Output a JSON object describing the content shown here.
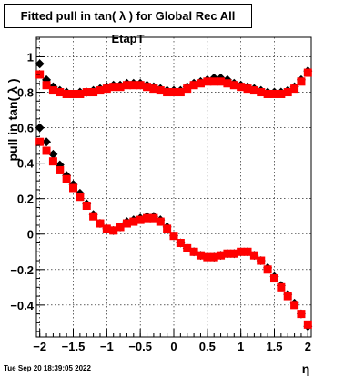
{
  "chart_data": {
    "type": "scatter",
    "title": "Fitted pull in tan( λ ) for Global Rec All EtapT",
    "xlabel": "η",
    "ylabel": "pull in tan( λ )",
    "xlim": [
      -2.05,
      2.05
    ],
    "ylim": [
      -0.58,
      1.11
    ],
    "grid": true,
    "x_ticks": [
      -2,
      -1.5,
      -1,
      -0.5,
      0,
      0.5,
      1,
      1.5,
      2
    ],
    "x_tick_labels": [
      "−2",
      "−1.5",
      "−1",
      "−0.5",
      "0",
      "0.5",
      "1",
      "1.5",
      "2"
    ],
    "y_ticks": [
      -0.4,
      -0.2,
      0,
      0.2,
      0.4,
      0.6,
      0.8,
      1
    ],
    "y_tick_labels": [
      "−0.4",
      "−0.2",
      "0",
      "0.2",
      "0.4",
      "0.6",
      "0.8",
      "1"
    ],
    "series": [
      {
        "color": "#000000",
        "marker": "diamond",
        "x": [
          -2.0,
          -1.9,
          -1.8,
          -1.7,
          -1.6,
          -1.5,
          -1.4,
          -1.3,
          -1.2,
          -1.1,
          -1.0,
          -0.9,
          -0.8,
          -0.7,
          -0.6,
          -0.5,
          -0.4,
          -0.3,
          -0.2,
          -0.1,
          0.0,
          0.1,
          0.2,
          0.3,
          0.4,
          0.5,
          0.6,
          0.7,
          0.8,
          0.9,
          1.0,
          1.1,
          1.2,
          1.3,
          1.4,
          1.5,
          1.6,
          1.7,
          1.8,
          1.9,
          2.0
        ],
        "y": [
          0.96,
          0.87,
          0.83,
          0.81,
          0.8,
          0.79,
          0.8,
          0.8,
          0.81,
          0.82,
          0.83,
          0.84,
          0.84,
          0.85,
          0.85,
          0.85,
          0.84,
          0.83,
          0.82,
          0.81,
          0.81,
          0.81,
          0.83,
          0.85,
          0.86,
          0.87,
          0.88,
          0.88,
          0.87,
          0.85,
          0.84,
          0.83,
          0.82,
          0.81,
          0.8,
          0.8,
          0.8,
          0.81,
          0.83,
          0.87,
          0.92
        ]
      },
      {
        "color": "#ff0000",
        "marker": "square",
        "x": [
          -2.0,
          -1.9,
          -1.8,
          -1.7,
          -1.6,
          -1.5,
          -1.4,
          -1.3,
          -1.2,
          -1.1,
          -1.0,
          -0.9,
          -0.8,
          -0.7,
          -0.6,
          -0.5,
          -0.4,
          -0.3,
          -0.2,
          -0.1,
          0.0,
          0.1,
          0.2,
          0.3,
          0.4,
          0.5,
          0.6,
          0.7,
          0.8,
          0.9,
          1.0,
          1.1,
          1.2,
          1.3,
          1.4,
          1.5,
          1.6,
          1.7,
          1.8,
          1.9,
          2.0
        ],
        "y": [
          0.9,
          0.84,
          0.81,
          0.8,
          0.79,
          0.79,
          0.79,
          0.8,
          0.8,
          0.81,
          0.82,
          0.83,
          0.83,
          0.84,
          0.84,
          0.84,
          0.83,
          0.82,
          0.81,
          0.8,
          0.8,
          0.8,
          0.82,
          0.84,
          0.85,
          0.86,
          0.86,
          0.86,
          0.85,
          0.84,
          0.83,
          0.82,
          0.81,
          0.8,
          0.79,
          0.79,
          0.79,
          0.8,
          0.82,
          0.86,
          0.91
        ]
      },
      {
        "color": "#000000",
        "marker": "diamond",
        "x": [
          -2.0,
          -1.9,
          -1.8,
          -1.7,
          -1.6,
          -1.5,
          -1.4,
          -1.3,
          -1.2,
          -1.1,
          -1.0,
          -0.9,
          -0.8,
          -0.7,
          -0.6,
          -0.5,
          -0.4,
          -0.3,
          -0.2,
          -0.1,
          0.0,
          0.1,
          0.2,
          0.3,
          0.4,
          0.5,
          0.6,
          0.7,
          0.8,
          0.9,
          1.0,
          1.1,
          1.2,
          1.3,
          1.4,
          1.5,
          1.6,
          1.7,
          1.8,
          1.9,
          2.0
        ],
        "y": [
          0.6,
          0.52,
          0.45,
          0.39,
          0.33,
          0.28,
          0.23,
          0.17,
          0.11,
          0.06,
          0.03,
          0.02,
          0.04,
          0.07,
          0.08,
          0.09,
          0.1,
          0.1,
          0.08,
          0.04,
          -0.01,
          -0.05,
          -0.08,
          -0.1,
          -0.12,
          -0.13,
          -0.13,
          -0.12,
          -0.11,
          -0.11,
          -0.1,
          -0.1,
          -0.12,
          -0.15,
          -0.19,
          -0.24,
          -0.29,
          -0.34,
          -0.39,
          -0.45,
          -0.52
        ]
      },
      {
        "color": "#ff0000",
        "marker": "square",
        "x": [
          -2.0,
          -1.9,
          -1.8,
          -1.7,
          -1.6,
          -1.5,
          -1.4,
          -1.3,
          -1.2,
          -1.1,
          -1.0,
          -0.9,
          -0.8,
          -0.7,
          -0.6,
          -0.5,
          -0.4,
          -0.3,
          -0.2,
          -0.1,
          0.0,
          0.1,
          0.2,
          0.3,
          0.4,
          0.5,
          0.6,
          0.7,
          0.8,
          0.9,
          1.0,
          1.1,
          1.2,
          1.3,
          1.4,
          1.5,
          1.6,
          1.7,
          1.8,
          1.9,
          2.0
        ],
        "y": [
          0.52,
          0.47,
          0.41,
          0.36,
          0.31,
          0.26,
          0.21,
          0.16,
          0.1,
          0.06,
          0.03,
          0.02,
          0.04,
          0.06,
          0.07,
          0.08,
          0.09,
          0.09,
          0.07,
          0.03,
          -0.01,
          -0.05,
          -0.08,
          -0.1,
          -0.12,
          -0.13,
          -0.13,
          -0.12,
          -0.11,
          -0.11,
          -0.1,
          -0.1,
          -0.12,
          -0.15,
          -0.2,
          -0.25,
          -0.3,
          -0.35,
          -0.4,
          -0.45,
          -0.51
        ]
      }
    ]
  },
  "footer": {
    "timestamp": "Tue Sep 20 18:39:05 2022"
  }
}
